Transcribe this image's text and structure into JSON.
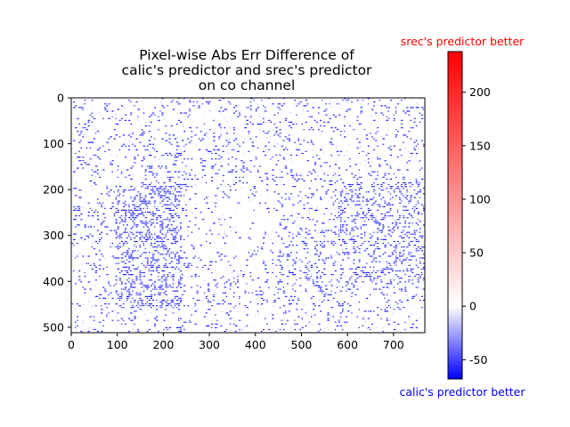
{
  "chart_data": {
    "type": "heatmap",
    "title_lines": [
      "Pixel-wise Abs Err Difference of",
      "calic's predictor and srec's predictor",
      "on co channel"
    ],
    "xlim": [
      0,
      768
    ],
    "ylim": [
      512,
      0
    ],
    "x_ticks": [
      0,
      100,
      200,
      300,
      400,
      500,
      600,
      700
    ],
    "y_ticks": [
      0,
      100,
      200,
      300,
      400,
      500
    ],
    "colorbar": {
      "vmin": -68,
      "vmax": 238,
      "center": 0,
      "ticks": [
        -50,
        0,
        50,
        100,
        150,
        200
      ],
      "top_label": "srec's predictor better",
      "bottom_label": "calic's predictor better",
      "colors": {
        "negative": "#0000ff",
        "zero": "#ffffff",
        "positive": "#ff0000"
      }
    },
    "image_pattern": "sparse difference noise, mostly near zero with blue (negative) speckles and checkerboard blocks, strongest blue around x 100-230, y 200-450 and right side x 560-760"
  }
}
